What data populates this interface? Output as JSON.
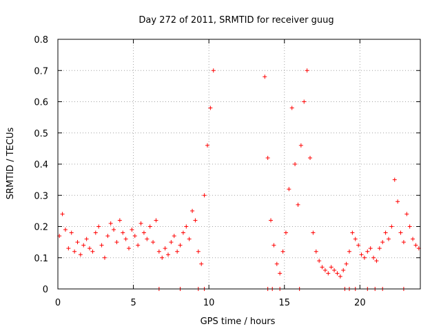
{
  "chart_data": {
    "type": "scatter",
    "title": "Day 272 of 2011, SRMTID for receiver guug",
    "xlabel": "GPS time / hours",
    "ylabel": "SRMTID / TECUs",
    "xlim": [
      0,
      24
    ],
    "ylim": [
      0,
      0.8
    ],
    "x_ticks": [
      0,
      5,
      10,
      15,
      20
    ],
    "x_tick_labels": [
      "0",
      "5",
      "10",
      "15",
      "20"
    ],
    "y_ticks": [
      0,
      0.1,
      0.2,
      0.3,
      0.4,
      0.5,
      0.6,
      0.7,
      0.8
    ],
    "y_tick_labels": [
      "0",
      "0.1",
      "0.2",
      "0.3",
      "0.4",
      "0.5",
      "0.6",
      "0.7",
      "0.8"
    ],
    "grid": true,
    "marker": "+",
    "colors": {
      "series": "#ff0000",
      "grid": "#a0a0a0",
      "axis": "#000000"
    },
    "series": [
      {
        "name": "SRMTID",
        "x": [
          0.1,
          0.3,
          0.5,
          0.7,
          0.9,
          1.1,
          1.3,
          1.5,
          1.7,
          1.9,
          2.1,
          2.3,
          2.5,
          2.7,
          2.9,
          3.1,
          3.3,
          3.5,
          3.7,
          3.9,
          4.1,
          4.3,
          4.5,
          4.7,
          4.9,
          5.1,
          5.3,
          5.5,
          5.7,
          5.9,
          6.1,
          6.3,
          6.5,
          6.7,
          6.9,
          7.1,
          7.3,
          7.5,
          7.7,
          7.9,
          8.1,
          8.3,
          8.5,
          8.7,
          8.9,
          9.1,
          9.3,
          9.5,
          9.7,
          9.9,
          10.1,
          10.3,
          13.7,
          13.9,
          14.1,
          14.3,
          14.5,
          14.7,
          14.9,
          15.1,
          15.3,
          15.5,
          15.7,
          15.9,
          16.1,
          16.3,
          16.5,
          16.7,
          16.9,
          17.1,
          17.3,
          17.5,
          17.7,
          17.9,
          18.1,
          18.3,
          18.5,
          18.7,
          18.9,
          19.1,
          19.3,
          19.5,
          19.7,
          19.9,
          20.1,
          20.3,
          20.5,
          20.7,
          20.9,
          21.1,
          21.3,
          21.5,
          21.7,
          21.9,
          22.1,
          22.3,
          22.5,
          22.7,
          22.9,
          23.1,
          23.3,
          23.5,
          23.7,
          23.9
        ],
        "y": [
          0.17,
          0.24,
          0.19,
          0.13,
          0.18,
          0.12,
          0.15,
          0.11,
          0.14,
          0.16,
          0.13,
          0.12,
          0.18,
          0.2,
          0.14,
          0.1,
          0.17,
          0.21,
          0.19,
          0.15,
          0.22,
          0.18,
          0.16,
          0.13,
          0.19,
          0.17,
          0.14,
          0.21,
          0.18,
          0.16,
          0.2,
          0.15,
          0.22,
          0.12,
          0.1,
          0.13,
          0.11,
          0.15,
          0.17,
          0.12,
          0.14,
          0.18,
          0.2,
          0.16,
          0.25,
          0.22,
          0.12,
          0.08,
          0.3,
          0.46,
          0.58,
          0.7,
          0.68,
          0.42,
          0.22,
          0.14,
          0.08,
          0.05,
          0.12,
          0.18,
          0.32,
          0.58,
          0.4,
          0.27,
          0.46,
          0.6,
          0.7,
          0.42,
          0.18,
          0.12,
          0.09,
          0.07,
          0.06,
          0.05,
          0.07,
          0.06,
          0.05,
          0.04,
          0.06,
          0.08,
          0.12,
          0.18,
          0.16,
          0.14,
          0.11,
          0.1,
          0.12,
          0.13,
          0.1,
          0.09,
          0.13,
          0.15,
          0.18,
          0.16,
          0.2,
          0.35,
          0.28,
          0.18,
          0.15,
          0.24,
          0.2,
          0.16,
          0.14,
          0.13
        ],
        "zero_x": [
          6.7,
          8.1,
          9.3,
          9.7,
          13.9,
          14.2,
          14.7,
          16.0,
          19.0,
          19.3,
          19.7,
          20.5,
          21.0,
          21.5,
          22.9
        ]
      }
    ]
  }
}
